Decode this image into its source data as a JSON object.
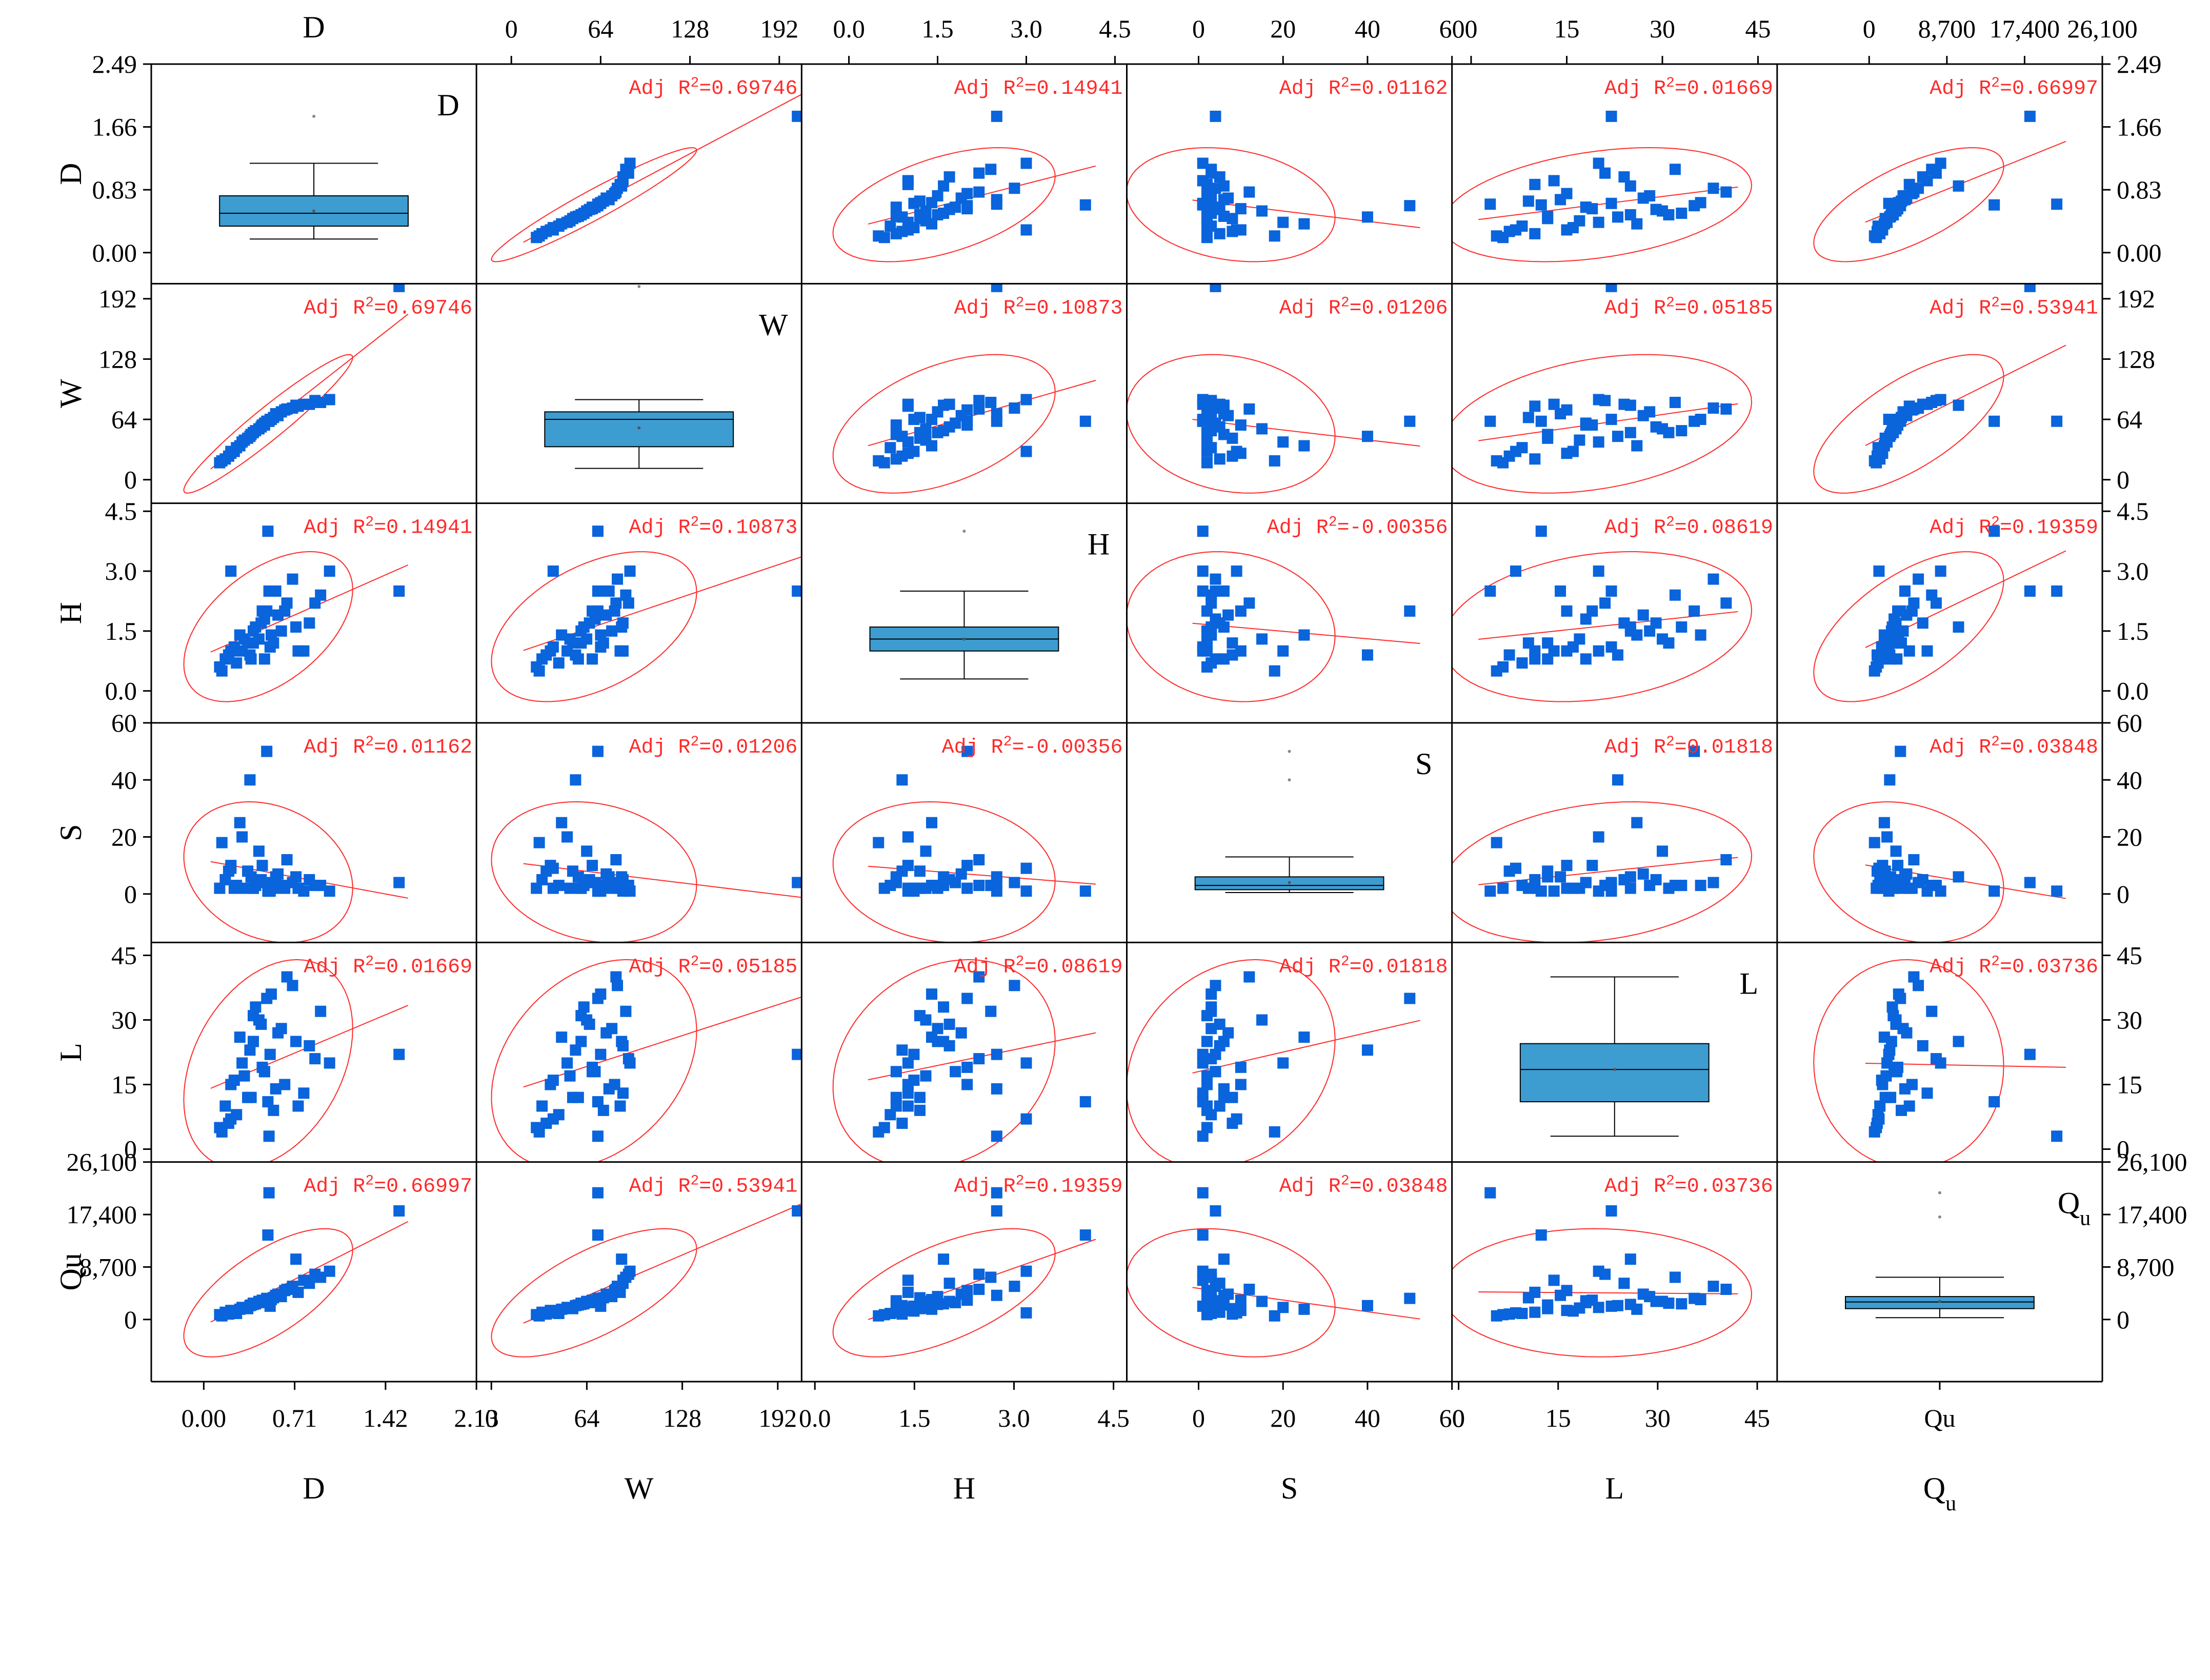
{
  "chart_data": {
    "type": "scatter-matrix",
    "title": "",
    "variables": [
      {
        "key": "D",
        "axis_label": "D",
        "diag_label": "D",
        "bottom_label": "D",
        "bottom_sub": "",
        "diag_sub": "",
        "range": [
          -0.41,
          2.49
        ],
        "ticks": [
          "0.00",
          "0.83",
          "1.66",
          "2.49"
        ],
        "tick_values": [
          0,
          0.83,
          1.66,
          2.49
        ],
        "bottom_range": [
          -0.41,
          2.13
        ],
        "bottom_ticks": [
          "0.00",
          "0.71",
          "1.42",
          "2.13"
        ],
        "bottom_tick_values": [
          0,
          0.71,
          1.42,
          2.13
        ]
      },
      {
        "key": "W",
        "axis_label": "W",
        "diag_label": "W",
        "bottom_label": "W",
        "bottom_sub": "",
        "diag_sub": "",
        "range": [
          -25,
          208
        ],
        "ticks": [
          "0",
          "64",
          "128",
          "192"
        ],
        "tick_values": [
          0,
          64,
          128,
          192
        ],
        "bottom_range": [
          -10,
          208
        ],
        "bottom_ticks": [
          "0",
          "64",
          "128",
          "192"
        ],
        "bottom_tick_values": [
          0,
          64,
          128,
          192
        ]
      },
      {
        "key": "H",
        "axis_label": "H",
        "diag_label": "H",
        "bottom_label": "H",
        "bottom_sub": "",
        "diag_sub": "",
        "range": [
          -0.8,
          4.7
        ],
        "ticks": [
          "0.0",
          "1.5",
          "3.0",
          "4.5"
        ],
        "tick_values": [
          0,
          1.5,
          3.0,
          4.5
        ],
        "bottom_range": [
          -0.2,
          4.7
        ],
        "bottom_ticks": [
          "0.0",
          "1.5",
          "3.0",
          "4.5"
        ],
        "bottom_tick_values": [
          0,
          1.5,
          3.0,
          4.5
        ]
      },
      {
        "key": "S",
        "axis_label": "S",
        "diag_label": "S",
        "bottom_label": "S",
        "bottom_sub": "",
        "diag_sub": "",
        "range": [
          -17,
          60
        ],
        "ticks": [
          "0",
          "20",
          "40",
          "60"
        ],
        "tick_values": [
          0,
          20,
          40,
          60
        ],
        "bottom_range": [
          -17,
          60
        ],
        "bottom_ticks": [
          "0",
          "20",
          "40",
          "60"
        ],
        "bottom_tick_values": [
          0,
          20,
          40,
          60
        ]
      },
      {
        "key": "L",
        "axis_label": "L",
        "diag_label": "L",
        "bottom_label": "L",
        "bottom_sub": "",
        "diag_sub": "",
        "range": [
          -3,
          48
        ],
        "ticks": [
          "0",
          "15",
          "30",
          "45"
        ],
        "tick_values": [
          0,
          15,
          30,
          45
        ],
        "bottom_range": [
          -1,
          48
        ],
        "bottom_ticks": [
          "0",
          "15",
          "30",
          "45"
        ],
        "bottom_tick_values": [
          0,
          15,
          30,
          45
        ]
      },
      {
        "key": "Qu",
        "axis_label": "Qu",
        "diag_label": "Q",
        "bottom_label": "Q",
        "bottom_sub": "u",
        "diag_sub": "u",
        "range": [
          -10300,
          26100
        ],
        "ticks": [
          "0",
          "8,700",
          "17,400",
          "26,100"
        ],
        "tick_values": [
          0,
          8700,
          17400,
          26100
        ],
        "bottom_range": [
          -10300,
          26100
        ],
        "bottom_ticks": [
          "Qu"
        ],
        "bottom_tick_values": [
          8700
        ]
      }
    ],
    "adj_r2": [
      [
        null,
        "0.69746",
        "0.14941",
        "0.01162",
        "0.01669",
        "0.66997"
      ],
      [
        "0.69746",
        null,
        "0.10873",
        "0.01206",
        "0.05185",
        "0.53941"
      ],
      [
        "0.14941",
        "0.10873",
        null,
        "-0.00356",
        "0.08619",
        "0.19359"
      ],
      [
        "0.01162",
        "0.01206",
        "-0.00356",
        null,
        "0.01818",
        "0.03848"
      ],
      [
        "0.01669",
        "0.05185",
        "0.08619",
        "0.01818",
        null,
        "0.03736"
      ],
      [
        "0.66997",
        "0.53941",
        "0.19359",
        "0.03848",
        "0.03736",
        null
      ]
    ],
    "r2_label_prefix": "Adj R",
    "r2_label_sup": "2",
    "box_stats": {
      "D": {
        "min": 0.18,
        "q1": 0.35,
        "median": 0.52,
        "q3": 0.75,
        "max": 1.18,
        "mean": 0.55,
        "outliers": [
          1.8
        ]
      },
      "W": {
        "min": 12,
        "q1": 35,
        "median": 64,
        "q3": 72,
        "max": 85,
        "mean": 55,
        "outliers": [
          205
        ]
      },
      "H": {
        "min": 0.3,
        "q1": 1.0,
        "median": 1.3,
        "q3": 1.6,
        "max": 2.5,
        "mean": 1.3,
        "outliers": [
          4.0
        ]
      },
      "S": {
        "min": 0.5,
        "q1": 1.5,
        "median": 3.0,
        "q3": 6.0,
        "max": 13,
        "mean": 4.0,
        "outliers": [
          40,
          50
        ]
      },
      "L": {
        "min": 3,
        "q1": 11,
        "median": 18.5,
        "q3": 24.5,
        "max": 40,
        "mean": 18.5,
        "outliers": []
      },
      "Qu": {
        "min": 300,
        "q1": 1800,
        "median": 2900,
        "q3": 3800,
        "max": 7000,
        "mean": 3000,
        "outliers": [
          17000,
          21000
        ]
      }
    },
    "observations": {
      "D": [
        0.2,
        0.25,
        0.3,
        0.35,
        0.4,
        0.45,
        0.5,
        0.55,
        0.6,
        0.62,
        0.65,
        0.7,
        0.75,
        0.8,
        0.9,
        1.0,
        1.1,
        1.18,
        1.8,
        0.28,
        0.33,
        0.38,
        0.48,
        0.52,
        0.58,
        0.68,
        0.72,
        0.85,
        0.95,
        1.05,
        0.22,
        0.42,
        0.47,
        0.57,
        0.63,
        0.66,
        0.78,
        0.88,
        0.3,
        0.5,
        0.6,
        0.64
      ],
      "W": [
        18,
        22,
        28,
        34,
        40,
        44,
        50,
        54,
        60,
        62,
        64,
        70,
        72,
        75,
        78,
        80,
        82,
        85,
        205,
        25,
        30,
        36,
        48,
        52,
        58,
        66,
        68,
        76,
        80,
        84,
        20,
        42,
        46,
        56,
        62,
        64,
        74,
        79,
        30,
        50,
        58,
        62
      ],
      "H": [
        0.6,
        0.8,
        1.0,
        0.7,
        1.0,
        1.2,
        1.5,
        1.3,
        1.8,
        2.0,
        1.1,
        2.5,
        1.5,
        2.2,
        1.0,
        1.7,
        2.4,
        3.0,
        2.5,
        0.9,
        1.1,
        1.4,
        0.8,
        1.6,
        2.0,
        1.2,
        1.9,
        2.8,
        1.0,
        2.2,
        0.5,
        1.3,
        0.9,
        1.7,
        4.0,
        1.4,
        2.0,
        1.6,
        3.0,
        1.2,
        0.8,
        2.5
      ],
      "S": [
        2,
        5,
        10,
        3,
        20,
        8,
        2,
        15,
        4,
        50,
        1,
        6,
        3,
        12,
        2,
        5,
        3,
        1,
        4,
        8,
        2,
        25,
        6,
        3,
        10,
        2,
        7,
        4,
        1,
        3,
        18,
        2,
        40,
        5,
        1,
        3,
        2,
        6,
        9,
        2,
        4,
        1
      ],
      "L": [
        5,
        10,
        15,
        8,
        20,
        12,
        25,
        30,
        18,
        35,
        22,
        14,
        28,
        40,
        10,
        24,
        32,
        20,
        22,
        6,
        16,
        26,
        12,
        33,
        19,
        9,
        27,
        38,
        13,
        21,
        4,
        17,
        23,
        29,
        11,
        36,
        15,
        25,
        7,
        31,
        18,
        3
      ],
      "Qu": [
        800,
        1200,
        1500,
        1000,
        2000,
        1800,
        2500,
        3000,
        2800,
        3500,
        2200,
        4000,
        3800,
        5000,
        4500,
        6000,
        7000,
        8000,
        18000,
        900,
        1400,
        1700,
        2400,
        2600,
        3200,
        3600,
        4200,
        5500,
        6500,
        7500,
        600,
        1900,
        2300,
        3000,
        14000,
        3300,
        4800,
        10000,
        1100,
        2700,
        3100,
        21000
      ]
    },
    "grid": false,
    "legend": "none"
  },
  "colors": {
    "marker": "#0a64dc",
    "fit_line": "#ff2a2a",
    "ellipse": "#ff2a2a",
    "box_fill": "#3d9cd0",
    "axis": "#000000"
  }
}
